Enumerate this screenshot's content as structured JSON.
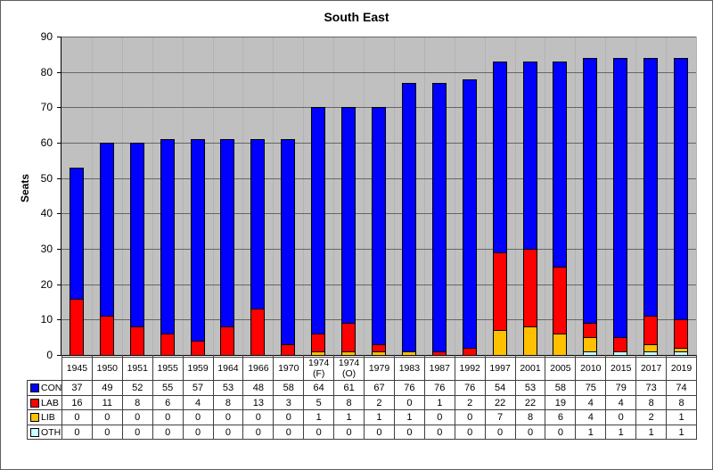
{
  "title": "South East",
  "chart_data": {
    "type": "bar",
    "stacked": true,
    "title": "South East",
    "xlabel": "",
    "ylabel": "Seats",
    "ylim": [
      0,
      90
    ],
    "y_ticks": [
      0,
      10,
      20,
      30,
      40,
      50,
      60,
      70,
      80,
      90
    ],
    "grid": true,
    "plot_bg": "#c0c0c0",
    "legend_position": "left-of-data-table",
    "has_data_table": true,
    "categories": [
      "1945",
      "1950",
      "1951",
      "1955",
      "1959",
      "1964",
      "1966",
      "1970",
      "1974 (F)",
      "1974 (O)",
      "1979",
      "1983",
      "1987",
      "1992",
      "1997",
      "2001",
      "2005",
      "2010",
      "2015",
      "2017",
      "2019"
    ],
    "series": [
      {
        "name": "CON",
        "color": "#0000ff",
        "values": [
          37,
          49,
          52,
          55,
          57,
          53,
          48,
          58,
          64,
          61,
          67,
          76,
          76,
          76,
          54,
          53,
          58,
          75,
          79,
          73,
          74
        ]
      },
      {
        "name": "LAB",
        "color": "#ff0000",
        "values": [
          16,
          11,
          8,
          6,
          4,
          8,
          13,
          3,
          5,
          8,
          2,
          0,
          1,
          2,
          22,
          22,
          19,
          4,
          4,
          8,
          8
        ]
      },
      {
        "name": "LIB",
        "color": "#ffc000",
        "values": [
          0,
          0,
          0,
          0,
          0,
          0,
          0,
          0,
          1,
          1,
          1,
          1,
          0,
          0,
          7,
          8,
          6,
          4,
          0,
          2,
          1
        ]
      },
      {
        "name": "OTH",
        "color": "#ccffff",
        "values": [
          0,
          0,
          0,
          0,
          0,
          0,
          0,
          0,
          0,
          0,
          0,
          0,
          0,
          0,
          0,
          0,
          0,
          1,
          1,
          1,
          1
        ]
      }
    ],
    "stack_order_bottom_to_top": [
      "OTH",
      "LIB",
      "LAB",
      "CON"
    ]
  }
}
